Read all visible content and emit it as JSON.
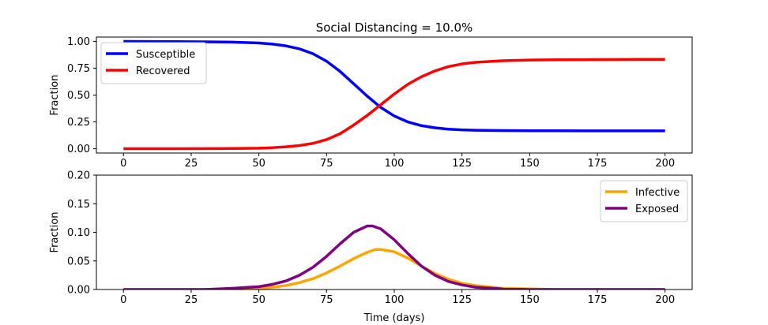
{
  "chart_data": [
    {
      "type": "line",
      "title": "Social Distancing = 10.0%",
      "xlabel": "",
      "ylabel": "Fraction",
      "xlim": [
        -10,
        210
      ],
      "ylim": [
        -0.04,
        1.04
      ],
      "xticks": [
        0,
        25,
        50,
        75,
        100,
        125,
        150,
        175,
        200
      ],
      "yticks": [
        0.0,
        0.25,
        0.5,
        0.75,
        1.0
      ],
      "ytick_labels": [
        "0.00",
        "0.25",
        "0.50",
        "0.75",
        "1.00"
      ],
      "legend_position": "upper-left",
      "grid": false,
      "series": [
        {
          "name": "Susceptible",
          "color": "#0000ff",
          "x": [
            0,
            10,
            20,
            30,
            40,
            50,
            55,
            60,
            65,
            70,
            75,
            80,
            85,
            90,
            95,
            100,
            105,
            110,
            115,
            120,
            125,
            130,
            140,
            150,
            160,
            170,
            180,
            190,
            200
          ],
          "y": [
            1.0,
            0.999,
            0.998,
            0.996,
            0.993,
            0.985,
            0.975,
            0.958,
            0.93,
            0.885,
            0.815,
            0.72,
            0.605,
            0.49,
            0.385,
            0.305,
            0.25,
            0.215,
            0.195,
            0.182,
            0.176,
            0.172,
            0.169,
            0.168,
            0.168,
            0.167,
            0.167,
            0.167,
            0.167
          ]
        },
        {
          "name": "Recovered",
          "color": "#ff0000",
          "x": [
            0,
            10,
            20,
            30,
            40,
            50,
            55,
            60,
            65,
            70,
            75,
            80,
            85,
            90,
            95,
            100,
            105,
            110,
            115,
            120,
            125,
            130,
            140,
            150,
            160,
            170,
            180,
            190,
            200
          ],
          "y": [
            0.0,
            0.0,
            0.0,
            0.001,
            0.002,
            0.005,
            0.01,
            0.018,
            0.03,
            0.05,
            0.085,
            0.14,
            0.22,
            0.31,
            0.41,
            0.51,
            0.6,
            0.67,
            0.725,
            0.765,
            0.79,
            0.805,
            0.82,
            0.826,
            0.829,
            0.83,
            0.831,
            0.832,
            0.832
          ]
        }
      ]
    },
    {
      "type": "line",
      "title": "",
      "xlabel": "Time (days)",
      "ylabel": "Fraction",
      "xlim": [
        -10,
        210
      ],
      "ylim": [
        0,
        0.2
      ],
      "xticks": [
        0,
        25,
        50,
        75,
        100,
        125,
        150,
        175,
        200
      ],
      "yticks": [
        0.0,
        0.05,
        0.1,
        0.15,
        0.2
      ],
      "ytick_labels": [
        "0.00",
        "0.05",
        "0.10",
        "0.15",
        "0.20"
      ],
      "legend_position": "upper-right",
      "grid": false,
      "series": [
        {
          "name": "Infective",
          "color": "#ffa500",
          "x": [
            0,
            10,
            20,
            30,
            40,
            50,
            55,
            60,
            65,
            70,
            75,
            80,
            85,
            90,
            93,
            95,
            100,
            105,
            110,
            115,
            120,
            125,
            130,
            140,
            150,
            160,
            170,
            180,
            190,
            200
          ],
          "y": [
            0.0,
            0.0,
            0.0,
            0.0,
            0.001,
            0.002,
            0.004,
            0.007,
            0.012,
            0.019,
            0.029,
            0.041,
            0.054,
            0.065,
            0.07,
            0.07,
            0.066,
            0.055,
            0.041,
            0.028,
            0.018,
            0.011,
            0.007,
            0.002,
            0.001,
            0.0,
            0.0,
            0.0,
            0.0,
            0.0
          ]
        },
        {
          "name": "Exposed",
          "color": "#800080",
          "x": [
            0,
            10,
            20,
            30,
            40,
            50,
            55,
            60,
            65,
            70,
            75,
            80,
            85,
            90,
            92,
            95,
            100,
            105,
            110,
            115,
            120,
            125,
            130,
            140,
            150,
            160,
            170,
            180,
            190,
            200
          ],
          "y": [
            0.0,
            0.0,
            0.0,
            0.0,
            0.002,
            0.005,
            0.009,
            0.015,
            0.025,
            0.039,
            0.058,
            0.08,
            0.1,
            0.111,
            0.111,
            0.106,
            0.087,
            0.063,
            0.041,
            0.025,
            0.014,
            0.008,
            0.004,
            0.001,
            0.0,
            0.0,
            0.0,
            0.0,
            0.0,
            0.0
          ]
        }
      ]
    }
  ]
}
